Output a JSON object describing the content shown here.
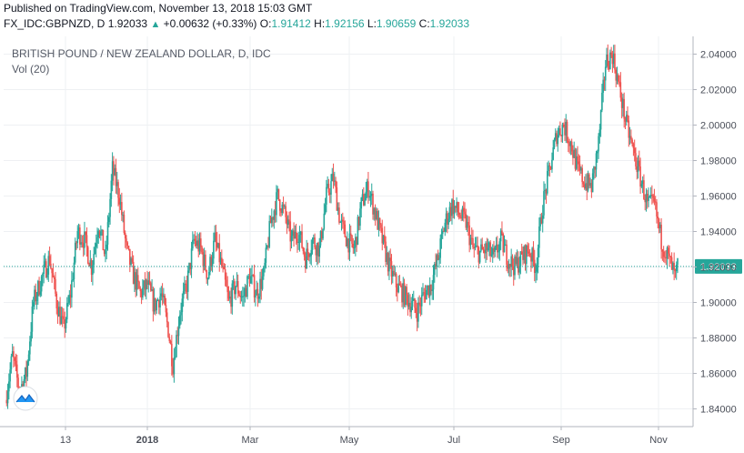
{
  "header": {
    "published": "Published on TradingView.com, November 13, 2018 15:03 GMT",
    "symbol": "FX_IDC:GBPNZD, D",
    "last": "1.92033",
    "change": "+0.00632 (+0.33%)",
    "o_label": "O:",
    "o_value": "1.91412",
    "h_label": "H:",
    "h_value": "1.92156",
    "l_label": "L:",
    "l_value": "1.90659",
    "c_label": "C:",
    "c_value": "1.92033"
  },
  "chart_data": {
    "type": "candlestick",
    "title": "BRITISH POUND / NEW ZEALAND DOLLAR, D, IDC",
    "indicator": "Vol (20)",
    "current_price": 1.92033,
    "current_price_label": "1.92033",
    "ylim": [
      1.83,
      2.05
    ],
    "y_ticks": [
      1.84,
      1.86,
      1.88,
      1.9,
      1.92,
      1.94,
      1.96,
      1.98,
      2.0,
      2.02,
      2.04
    ],
    "y_tick_labels": [
      "1.84000",
      "1.86000",
      "1.88000",
      "1.90000",
      "1.92000",
      "1.94000",
      "1.96000",
      "1.98000",
      "2.00000",
      "2.02000",
      "2.04000"
    ],
    "x_ticks": [
      "13",
      "2018",
      "Mar",
      "May",
      "Jul",
      "Sep",
      "Nov"
    ],
    "grid": true,
    "colors": {
      "up": "#26a69a",
      "down": "#ef5350",
      "grid": "#eef0f3",
      "price_line": "#26a69a",
      "axis_text": "#4a4e58"
    },
    "close_path": [
      [
        0,
        1.845
      ],
      [
        6,
        1.87
      ],
      [
        12,
        1.85
      ],
      [
        18,
        1.86
      ],
      [
        24,
        1.9
      ],
      [
        32,
        1.915
      ],
      [
        38,
        1.925
      ],
      [
        44,
        1.9
      ],
      [
        50,
        1.885
      ],
      [
        56,
        1.905
      ],
      [
        62,
        1.94
      ],
      [
        68,
        1.935
      ],
      [
        74,
        1.92
      ],
      [
        80,
        1.945
      ],
      [
        86,
        1.925
      ],
      [
        92,
        1.975
      ],
      [
        98,
        1.96
      ],
      [
        104,
        1.93
      ],
      [
        110,
        1.915
      ],
      [
        116,
        1.905
      ],
      [
        122,
        1.91
      ],
      [
        128,
        1.898
      ],
      [
        134,
        1.905
      ],
      [
        140,
        1.885
      ],
      [
        144,
        1.865
      ],
      [
        150,
        1.895
      ],
      [
        156,
        1.91
      ],
      [
        162,
        1.935
      ],
      [
        168,
        1.93
      ],
      [
        174,
        1.915
      ],
      [
        180,
        1.935
      ],
      [
        186,
        1.92
      ],
      [
        192,
        1.9
      ],
      [
        198,
        1.91
      ],
      [
        204,
        1.902
      ],
      [
        210,
        1.915
      ],
      [
        216,
        1.905
      ],
      [
        222,
        1.915
      ],
      [
        228,
        1.945
      ],
      [
        234,
        1.96
      ],
      [
        240,
        1.95
      ],
      [
        246,
        1.935
      ],
      [
        252,
        1.94
      ],
      [
        258,
        1.925
      ],
      [
        264,
        1.935
      ],
      [
        270,
        1.93
      ],
      [
        276,
        1.96
      ],
      [
        282,
        1.97
      ],
      [
        288,
        1.945
      ],
      [
        294,
        1.935
      ],
      [
        300,
        1.93
      ],
      [
        306,
        1.955
      ],
      [
        312,
        1.965
      ],
      [
        318,
        1.95
      ],
      [
        324,
        1.935
      ],
      [
        330,
        1.92
      ],
      [
        336,
        1.91
      ],
      [
        342,
        1.905
      ],
      [
        348,
        1.9
      ],
      [
        354,
        1.895
      ],
      [
        360,
        1.905
      ],
      [
        366,
        1.91
      ],
      [
        372,
        1.925
      ],
      [
        378,
        1.945
      ],
      [
        384,
        1.955
      ],
      [
        390,
        1.95
      ],
      [
        396,
        1.945
      ],
      [
        402,
        1.93
      ],
      [
        408,
        1.928
      ],
      [
        414,
        1.93
      ],
      [
        420,
        1.925
      ],
      [
        426,
        1.935
      ],
      [
        432,
        1.925
      ],
      [
        438,
        1.92
      ],
      [
        444,
        1.925
      ],
      [
        450,
        1.93
      ],
      [
        456,
        1.92
      ],
      [
        462,
        1.955
      ],
      [
        468,
        1.975
      ],
      [
        474,
        1.995
      ],
      [
        480,
        2.0
      ],
      [
        486,
        1.99
      ],
      [
        492,
        1.975
      ],
      [
        498,
        1.968
      ],
      [
        504,
        1.965
      ],
      [
        510,
        1.99
      ],
      [
        516,
        2.035
      ],
      [
        522,
        2.04
      ],
      [
        528,
        2.02
      ],
      [
        534,
        2.0
      ],
      [
        540,
        1.985
      ],
      [
        546,
        1.97
      ],
      [
        552,
        1.955
      ],
      [
        558,
        1.955
      ],
      [
        564,
        1.935
      ],
      [
        570,
        1.925
      ],
      [
        576,
        1.914
      ],
      [
        578,
        1.92
      ]
    ]
  }
}
